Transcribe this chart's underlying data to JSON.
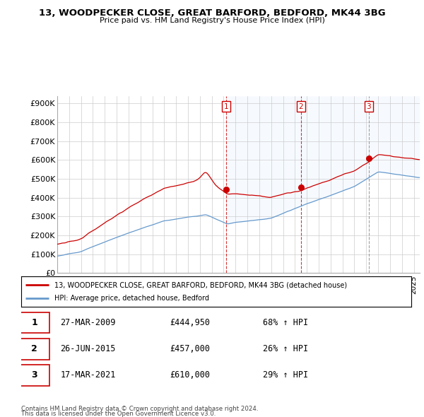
{
  "title1": "13, WOODPECKER CLOSE, GREAT BARFORD, BEDFORD, MK44 3BG",
  "title2": "Price paid vs. HM Land Registry's House Price Index (HPI)",
  "ylabel_ticks": [
    "£0",
    "£100K",
    "£200K",
    "£300K",
    "£400K",
    "£500K",
    "£600K",
    "£700K",
    "£800K",
    "£900K"
  ],
  "ytick_values": [
    0,
    100000,
    200000,
    300000,
    400000,
    500000,
    600000,
    700000,
    800000,
    900000
  ],
  "xlim_start": 1995.0,
  "xlim_end": 2025.5,
  "ylim": [
    0,
    940000
  ],
  "sale1": {
    "date": 2009.23,
    "price": 444950,
    "label": "1"
  },
  "sale2": {
    "date": 2015.49,
    "price": 457000,
    "label": "2"
  },
  "sale3": {
    "date": 2021.21,
    "price": 610000,
    "label": "3"
  },
  "legend_line1": "13, WOODPECKER CLOSE, GREAT BARFORD, BEDFORD, MK44 3BG (detached house)",
  "legend_line2": "HPI: Average price, detached house, Bedford",
  "table_rows": [
    {
      "num": "1",
      "date": "27-MAR-2009",
      "price": "£444,950",
      "pct": "68% ↑ HPI"
    },
    {
      "num": "2",
      "date": "26-JUN-2015",
      "price": "£457,000",
      "pct": "26% ↑ HPI"
    },
    {
      "num": "3",
      "date": "17-MAR-2021",
      "price": "£610,000",
      "pct": "29% ↑ HPI"
    }
  ],
  "footnote1": "Contains HM Land Registry data © Crown copyright and database right 2024.",
  "footnote2": "This data is licensed under the Open Government Licence v3.0.",
  "red_color": "#cc0000",
  "blue_color": "#6699cc",
  "blue_fill": "#ddeeff",
  "grid_color": "#cccccc",
  "bg_color": "#ffffff"
}
